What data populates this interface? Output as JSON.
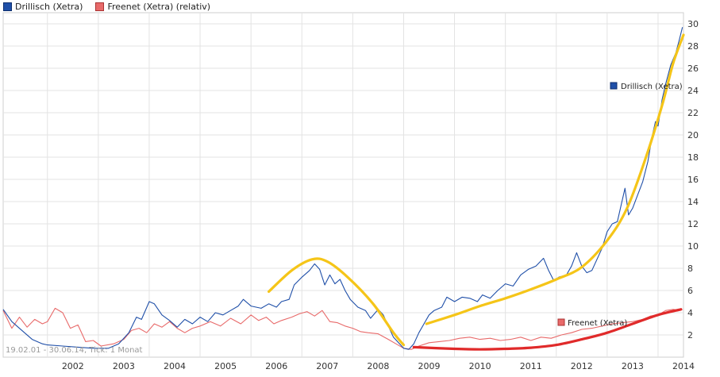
{
  "legend": [
    {
      "label": "Drillisch (Xetra)",
      "color": "#1f4fa8"
    },
    {
      "label": "Freenet (Xetra) (relativ)",
      "color": "#e86a6a"
    }
  ],
  "footer_text": "19.02.01 - 30.06.14, Tick: 1 Monat",
  "series_labels": {
    "drillisch": "Drillisch (Xetra)",
    "freenet": "Freenet (Xetra)"
  },
  "chart_data": {
    "type": "line",
    "xlim": [
      2001.13,
      2014.5
    ],
    "ylim": [
      0,
      31
    ],
    "x_ticks": [
      "2002",
      "2003",
      "2004",
      "2005",
      "2006",
      "2007",
      "2008",
      "2009",
      "2010",
      "2011",
      "2012",
      "2013",
      "2014"
    ],
    "y_ticks": [
      2,
      4,
      6,
      8,
      10,
      12,
      14,
      16,
      18,
      20,
      22,
      24,
      26,
      28,
      30
    ],
    "grid": true,
    "legend_position": "top-left",
    "series": [
      {
        "name": "Drillisch (Xetra)",
        "color": "#1f4fa8",
        "points": [
          [
            2001.13,
            4.3
          ],
          [
            2001.3,
            3.2
          ],
          [
            2001.5,
            2.4
          ],
          [
            2001.7,
            1.6
          ],
          [
            2001.9,
            1.2
          ],
          [
            2002.0,
            1.1
          ],
          [
            2002.3,
            1.0
          ],
          [
            2002.6,
            0.9
          ],
          [
            2002.9,
            0.8
          ],
          [
            2003.2,
            0.8
          ],
          [
            2003.4,
            1.2
          ],
          [
            2003.6,
            2.2
          ],
          [
            2003.75,
            3.6
          ],
          [
            2003.85,
            3.4
          ],
          [
            2004.0,
            5.0
          ],
          [
            2004.1,
            4.8
          ],
          [
            2004.25,
            3.8
          ],
          [
            2004.4,
            3.3
          ],
          [
            2004.55,
            2.7
          ],
          [
            2004.7,
            3.4
          ],
          [
            2004.85,
            3.0
          ],
          [
            2005.0,
            3.6
          ],
          [
            2005.15,
            3.2
          ],
          [
            2005.3,
            4.0
          ],
          [
            2005.45,
            3.8
          ],
          [
            2005.6,
            4.2
          ],
          [
            2005.75,
            4.6
          ],
          [
            2005.85,
            5.2
          ],
          [
            2006.0,
            4.6
          ],
          [
            2006.2,
            4.4
          ],
          [
            2006.35,
            4.8
          ],
          [
            2006.5,
            4.5
          ],
          [
            2006.6,
            5.0
          ],
          [
            2006.75,
            5.2
          ],
          [
            2006.85,
            6.5
          ],
          [
            2007.0,
            7.2
          ],
          [
            2007.15,
            7.8
          ],
          [
            2007.25,
            8.4
          ],
          [
            2007.35,
            7.9
          ],
          [
            2007.45,
            6.5
          ],
          [
            2007.55,
            7.4
          ],
          [
            2007.65,
            6.6
          ],
          [
            2007.75,
            7.0
          ],
          [
            2007.85,
            6.0
          ],
          [
            2007.95,
            5.2
          ],
          [
            2008.1,
            4.5
          ],
          [
            2008.25,
            4.2
          ],
          [
            2008.35,
            3.5
          ],
          [
            2008.5,
            4.3
          ],
          [
            2008.6,
            3.8
          ],
          [
            2008.7,
            2.8
          ],
          [
            2008.8,
            1.8
          ],
          [
            2008.9,
            1.3
          ],
          [
            2009.0,
            0.8
          ],
          [
            2009.1,
            0.7
          ],
          [
            2009.2,
            1.2
          ],
          [
            2009.3,
            2.2
          ],
          [
            2009.4,
            3.0
          ],
          [
            2009.5,
            3.8
          ],
          [
            2009.6,
            4.2
          ],
          [
            2009.75,
            4.5
          ],
          [
            2009.85,
            5.4
          ],
          [
            2010.0,
            5.0
          ],
          [
            2010.15,
            5.4
          ],
          [
            2010.3,
            5.3
          ],
          [
            2010.45,
            5.0
          ],
          [
            2010.55,
            5.6
          ],
          [
            2010.7,
            5.3
          ],
          [
            2010.85,
            6.0
          ],
          [
            2011.0,
            6.6
          ],
          [
            2011.15,
            6.4
          ],
          [
            2011.3,
            7.4
          ],
          [
            2011.45,
            7.9
          ],
          [
            2011.6,
            8.2
          ],
          [
            2011.75,
            8.9
          ],
          [
            2011.85,
            7.8
          ],
          [
            2011.95,
            6.9
          ],
          [
            2012.05,
            7.2
          ],
          [
            2012.2,
            7.4
          ],
          [
            2012.3,
            8.2
          ],
          [
            2012.4,
            9.4
          ],
          [
            2012.5,
            8.2
          ],
          [
            2012.6,
            7.6
          ],
          [
            2012.7,
            7.8
          ],
          [
            2012.8,
            8.8
          ],
          [
            2012.9,
            9.8
          ],
          [
            2013.0,
            11.3
          ],
          [
            2013.1,
            12.0
          ],
          [
            2013.2,
            12.2
          ],
          [
            2013.3,
            14.2
          ],
          [
            2013.35,
            15.2
          ],
          [
            2013.42,
            12.8
          ],
          [
            2013.5,
            13.4
          ],
          [
            2013.6,
            14.6
          ],
          [
            2013.7,
            15.8
          ],
          [
            2013.8,
            17.6
          ],
          [
            2013.88,
            19.8
          ],
          [
            2013.95,
            21.2
          ],
          [
            2014.0,
            20.8
          ],
          [
            2014.08,
            23.2
          ],
          [
            2014.15,
            24.6
          ],
          [
            2014.25,
            26.3
          ],
          [
            2014.35,
            27.4
          ],
          [
            2014.42,
            28.6
          ],
          [
            2014.48,
            29.7
          ]
        ]
      },
      {
        "name": "Freenet (Xetra)",
        "color": "#e86a6a",
        "points": [
          [
            2001.13,
            4.2
          ],
          [
            2001.3,
            2.6
          ],
          [
            2001.45,
            3.6
          ],
          [
            2001.6,
            2.7
          ],
          [
            2001.75,
            3.4
          ],
          [
            2001.9,
            3.0
          ],
          [
            2002.0,
            3.2
          ],
          [
            2002.15,
            4.4
          ],
          [
            2002.3,
            4.0
          ],
          [
            2002.45,
            2.6
          ],
          [
            2002.6,
            2.9
          ],
          [
            2002.75,
            1.4
          ],
          [
            2002.9,
            1.5
          ],
          [
            2003.05,
            1.0
          ],
          [
            2003.3,
            1.2
          ],
          [
            2003.5,
            1.6
          ],
          [
            2003.65,
            2.4
          ],
          [
            2003.8,
            2.6
          ],
          [
            2003.95,
            2.2
          ],
          [
            2004.1,
            3.0
          ],
          [
            2004.25,
            2.7
          ],
          [
            2004.4,
            3.2
          ],
          [
            2004.55,
            2.6
          ],
          [
            2004.7,
            2.2
          ],
          [
            2004.85,
            2.6
          ],
          [
            2005.0,
            2.8
          ],
          [
            2005.2,
            3.2
          ],
          [
            2005.4,
            2.8
          ],
          [
            2005.6,
            3.5
          ],
          [
            2005.8,
            3.0
          ],
          [
            2006.0,
            3.8
          ],
          [
            2006.15,
            3.3
          ],
          [
            2006.3,
            3.6
          ],
          [
            2006.45,
            3.0
          ],
          [
            2006.6,
            3.3
          ],
          [
            2006.8,
            3.6
          ],
          [
            2006.95,
            3.9
          ],
          [
            2007.1,
            4.1
          ],
          [
            2007.25,
            3.7
          ],
          [
            2007.4,
            4.2
          ],
          [
            2007.55,
            3.2
          ],
          [
            2007.7,
            3.1
          ],
          [
            2007.85,
            2.8
          ],
          [
            2008.0,
            2.6
          ],
          [
            2008.15,
            2.3
          ],
          [
            2008.3,
            2.2
          ],
          [
            2008.5,
            2.1
          ],
          [
            2008.7,
            1.6
          ],
          [
            2008.85,
            1.2
          ],
          [
            2009.0,
            0.8
          ],
          [
            2009.15,
            0.7
          ],
          [
            2009.3,
            1.0
          ],
          [
            2009.5,
            1.3
          ],
          [
            2009.7,
            1.4
          ],
          [
            2009.9,
            1.5
          ],
          [
            2010.1,
            1.7
          ],
          [
            2010.3,
            1.8
          ],
          [
            2010.5,
            1.6
          ],
          [
            2010.7,
            1.7
          ],
          [
            2010.9,
            1.5
          ],
          [
            2011.1,
            1.6
          ],
          [
            2011.3,
            1.8
          ],
          [
            2011.5,
            1.5
          ],
          [
            2011.7,
            1.8
          ],
          [
            2011.9,
            1.7
          ],
          [
            2012.1,
            2.0
          ],
          [
            2012.3,
            2.2
          ],
          [
            2012.5,
            2.5
          ],
          [
            2012.7,
            2.6
          ],
          [
            2012.9,
            2.8
          ],
          [
            2013.1,
            3.0
          ],
          [
            2013.3,
            3.1
          ],
          [
            2013.5,
            3.2
          ],
          [
            2013.7,
            3.4
          ],
          [
            2013.85,
            3.7
          ],
          [
            2014.0,
            3.8
          ],
          [
            2014.15,
            4.2
          ],
          [
            2014.3,
            4.3
          ],
          [
            2014.42,
            4.2
          ],
          [
            2014.48,
            4.3
          ]
        ]
      }
    ],
    "annotations": [
      {
        "type": "trend-curve",
        "color": "#f5c518",
        "points": [
          [
            2006.35,
            5.9
          ],
          [
            2006.8,
            7.8
          ],
          [
            2007.2,
            8.8
          ],
          [
            2007.5,
            8.6
          ],
          [
            2007.9,
            7.2
          ],
          [
            2008.4,
            4.8
          ],
          [
            2008.8,
            2.2
          ],
          [
            2009.0,
            1.1
          ]
        ]
      },
      {
        "type": "trend-curve",
        "color": "#f5c518",
        "points": [
          [
            2009.45,
            3.0
          ],
          [
            2010.0,
            3.8
          ],
          [
            2010.5,
            4.6
          ],
          [
            2011.0,
            5.3
          ],
          [
            2011.5,
            6.1
          ],
          [
            2012.0,
            7.0
          ],
          [
            2012.5,
            8.1
          ],
          [
            2013.0,
            10.5
          ],
          [
            2013.4,
            13.5
          ],
          [
            2013.8,
            18.5
          ],
          [
            2014.1,
            23.0
          ],
          [
            2014.3,
            26.5
          ],
          [
            2014.5,
            29.0
          ]
        ]
      },
      {
        "type": "trend-curve",
        "color": "#e02a2a",
        "points": [
          [
            2009.2,
            0.9
          ],
          [
            2010.0,
            0.75
          ],
          [
            2010.5,
            0.7
          ],
          [
            2011.0,
            0.75
          ],
          [
            2011.5,
            0.85
          ],
          [
            2012.0,
            1.1
          ],
          [
            2012.5,
            1.6
          ],
          [
            2013.0,
            2.2
          ],
          [
            2013.5,
            3.0
          ],
          [
            2014.0,
            3.8
          ],
          [
            2014.45,
            4.3
          ]
        ]
      }
    ]
  }
}
